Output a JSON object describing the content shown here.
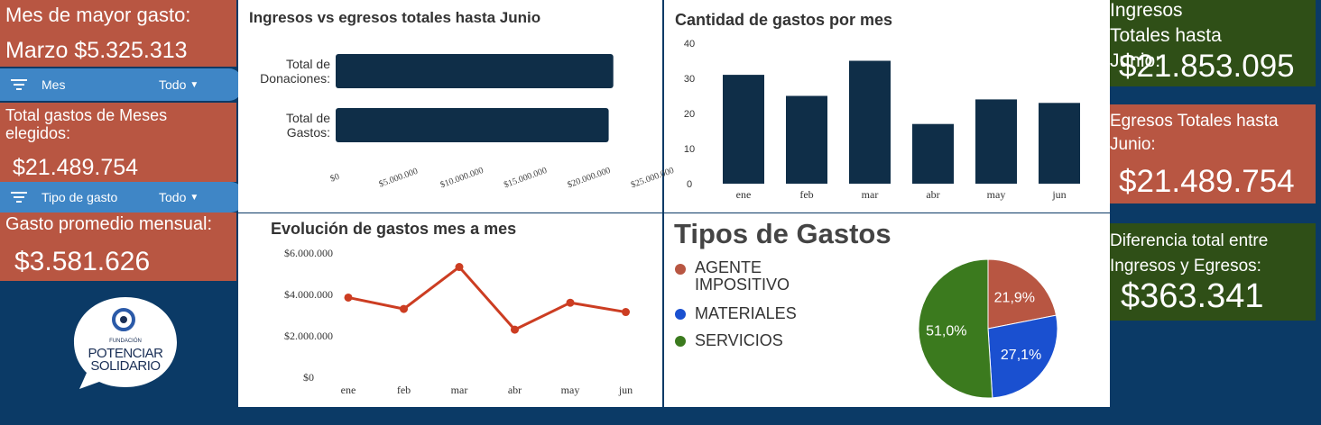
{
  "left": {
    "max_month_label": "Mes de mayor gasto:",
    "max_month_value": "Marzo $5.325.313",
    "filter_month": {
      "label": "Mes",
      "value": "Todo"
    },
    "total_selected_label": "Total gastos de Meses elegidos:",
    "total_selected_value": "$21.489.754",
    "filter_type": {
      "label": "Tipo de gasto",
      "value": "Todo"
    },
    "avg_label": "Gasto promedio mensual:",
    "avg_value": "$3.581.626",
    "logo": {
      "line1": "FUNDACIÓN",
      "line2": "POTENCIAR",
      "line3": "SOLIDARIO"
    }
  },
  "right": {
    "ingresos_label": "Ingresos Totales hasta Junio:",
    "ingresos_value": "$21.853.095",
    "egresos_label": "Egresos Totales hasta Junio:",
    "egresos_value": "$21.489.754",
    "diff_label": "Diferencia total entre Ingresos y Egresos:",
    "diff_value": "$363.341"
  },
  "colors": {
    "navy": "#0b3a66",
    "red": "#b85642",
    "green": "#2f4f17",
    "bar": "#0f2e48",
    "line": "#cc3d22",
    "pie_red": "#b85642",
    "pie_blue": "#1a50d0",
    "pie_green": "#3b7a1e"
  },
  "chart_data": [
    {
      "type": "bar",
      "orientation": "horizontal",
      "title": "Ingresos vs egresos totales hasta Junio",
      "categories": [
        "Total de Donaciones:",
        "Total de Gastos:"
      ],
      "values": [
        21853095,
        21489754
      ],
      "xlim": [
        0,
        25000000
      ],
      "xticks": [
        "$0",
        "$5.000.000",
        "$10.000.000",
        "$15.000.000",
        "$20.000.000",
        "$25.000.000"
      ]
    },
    {
      "type": "bar",
      "title": "Cantidad de gastos por mes",
      "categories": [
        "ene",
        "feb",
        "mar",
        "abr",
        "may",
        "jun"
      ],
      "values": [
        31,
        25,
        35,
        17,
        24,
        23
      ],
      "ylim": [
        0,
        40
      ],
      "yticks": [
        "0",
        "10",
        "20",
        "30",
        "40"
      ]
    },
    {
      "type": "line",
      "title": "Evolución de gastos mes a mes",
      "categories": [
        "ene",
        "feb",
        "mar",
        "abr",
        "may",
        "jun"
      ],
      "values": [
        3850000,
        3300000,
        5325313,
        2300000,
        3600000,
        3150000
      ],
      "ylim": [
        0,
        6000000
      ],
      "yticks": [
        "$0",
        "$2.000.000",
        "$4.000.000",
        "$6.000.000"
      ]
    },
    {
      "type": "pie",
      "title": "Tipos de Gastos",
      "labels": [
        "AGENTE IMPOSITIVO",
        "MATERIALES",
        "SERVICIOS"
      ],
      "values": [
        21.9,
        27.1,
        51.0
      ],
      "display": [
        "21,9%",
        "27,1%",
        "51,0%"
      ]
    }
  ]
}
